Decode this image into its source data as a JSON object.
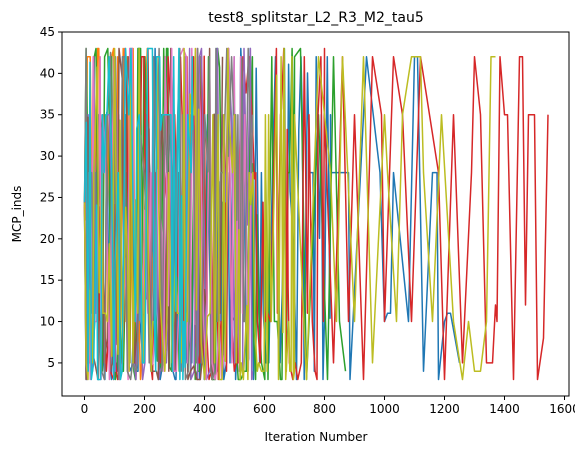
{
  "chart_data": {
    "type": "line",
    "title": "test8_splitstar_L2_R3_M2_tau5",
    "xlabel": "Iteration Number",
    "ylabel": "MCP_inds",
    "xlim": [
      -75,
      1615
    ],
    "ylim": [
      1,
      45
    ],
    "xticks": [
      0,
      200,
      400,
      600,
      800,
      1000,
      1200,
      1400,
      1600
    ],
    "yticks": [
      5,
      10,
      15,
      20,
      25,
      30,
      35,
      40,
      45
    ],
    "grid": false,
    "legend": "none",
    "colors": [
      "#1f77b4",
      "#ff7f0e",
      "#2ca02c",
      "#d62728",
      "#9467bd",
      "#8c564b",
      "#e377c2",
      "#7f7f7f",
      "#bcbd22",
      "#17becf"
    ],
    "series": [
      {
        "end": 1250,
        "color": "#1f77b4",
        "seed": 11,
        "tail": [
          [
            820,
            28
          ],
          [
            880,
            28
          ],
          [
            885,
            3
          ],
          [
            940,
            42
          ],
          [
            985,
            28
          ],
          [
            1000,
            10
          ],
          [
            1010,
            11
          ],
          [
            1020,
            11
          ],
          [
            1030,
            28
          ],
          [
            1080,
            10
          ],
          [
            1100,
            42
          ],
          [
            1110,
            42
          ],
          [
            1130,
            4
          ],
          [
            1160,
            28
          ],
          [
            1175,
            28
          ],
          [
            1180,
            3
          ],
          [
            1200,
            10
          ],
          [
            1210,
            11
          ],
          [
            1220,
            11
          ],
          [
            1250,
            5
          ]
        ]
      },
      {
        "end": 230,
        "color": "#ff7f0e",
        "seed": 22,
        "tail": []
      },
      {
        "end": 870,
        "color": "#2ca02c",
        "seed": 33,
        "tail": [
          [
            700,
            42
          ],
          [
            720,
            43
          ],
          [
            740,
            3
          ],
          [
            780,
            35
          ],
          [
            810,
            3
          ],
          [
            830,
            42
          ],
          [
            850,
            10
          ],
          [
            870,
            4
          ]
        ]
      },
      {
        "end": 1545,
        "color": "#d62728",
        "seed": 44,
        "tail": [
          [
            800,
            35
          ],
          [
            830,
            5
          ],
          [
            860,
            42
          ],
          [
            880,
            10
          ],
          [
            900,
            35
          ],
          [
            930,
            3
          ],
          [
            960,
            42
          ],
          [
            990,
            35
          ],
          [
            1000,
            10
          ],
          [
            1030,
            42
          ],
          [
            1060,
            35
          ],
          [
            1090,
            10
          ],
          [
            1120,
            42
          ],
          [
            1150,
            35
          ],
          [
            1180,
            28
          ],
          [
            1200,
            3
          ],
          [
            1230,
            35
          ],
          [
            1260,
            5
          ],
          [
            1290,
            28
          ],
          [
            1300,
            42
          ],
          [
            1320,
            35
          ],
          [
            1340,
            5
          ],
          [
            1360,
            5
          ],
          [
            1370,
            12
          ],
          [
            1375,
            10
          ],
          [
            1385,
            42
          ],
          [
            1400,
            35
          ],
          [
            1410,
            35
          ],
          [
            1430,
            3
          ],
          [
            1450,
            42
          ],
          [
            1460,
            42
          ],
          [
            1470,
            12
          ],
          [
            1480,
            35
          ],
          [
            1500,
            35
          ],
          [
            1510,
            3
          ],
          [
            1530,
            8
          ],
          [
            1545,
            35
          ]
        ]
      },
      {
        "end": 560,
        "color": "#9467bd",
        "seed": 55,
        "tail": []
      },
      {
        "end": 460,
        "color": "#8c564b",
        "seed": 66,
        "tail": []
      },
      {
        "end": 560,
        "color": "#e377c2",
        "seed": 77,
        "tail": []
      },
      {
        "end": 560,
        "color": "#7f7f7f",
        "seed": 88,
        "tail": []
      },
      {
        "end": 1370,
        "color": "#bcbd22",
        "seed": 99,
        "tail": [
          [
            700,
            35
          ],
          [
            740,
            3
          ],
          [
            780,
            42
          ],
          [
            800,
            35
          ],
          [
            820,
            28
          ],
          [
            840,
            10
          ],
          [
            860,
            42
          ],
          [
            900,
            10
          ],
          [
            930,
            42
          ],
          [
            960,
            5
          ],
          [
            1000,
            35
          ],
          [
            1010,
            28
          ],
          [
            1040,
            10
          ],
          [
            1060,
            35
          ],
          [
            1090,
            42
          ],
          [
            1120,
            42
          ],
          [
            1130,
            28
          ],
          [
            1160,
            10
          ],
          [
            1190,
            35
          ],
          [
            1230,
            10
          ],
          [
            1260,
            3
          ],
          [
            1280,
            10
          ],
          [
            1300,
            4
          ],
          [
            1320,
            4
          ],
          [
            1340,
            10
          ],
          [
            1355,
            42
          ],
          [
            1370,
            42
          ]
        ]
      },
      {
        "end": 360,
        "color": "#17becf",
        "seed": 111,
        "tail": []
      }
    ]
  }
}
